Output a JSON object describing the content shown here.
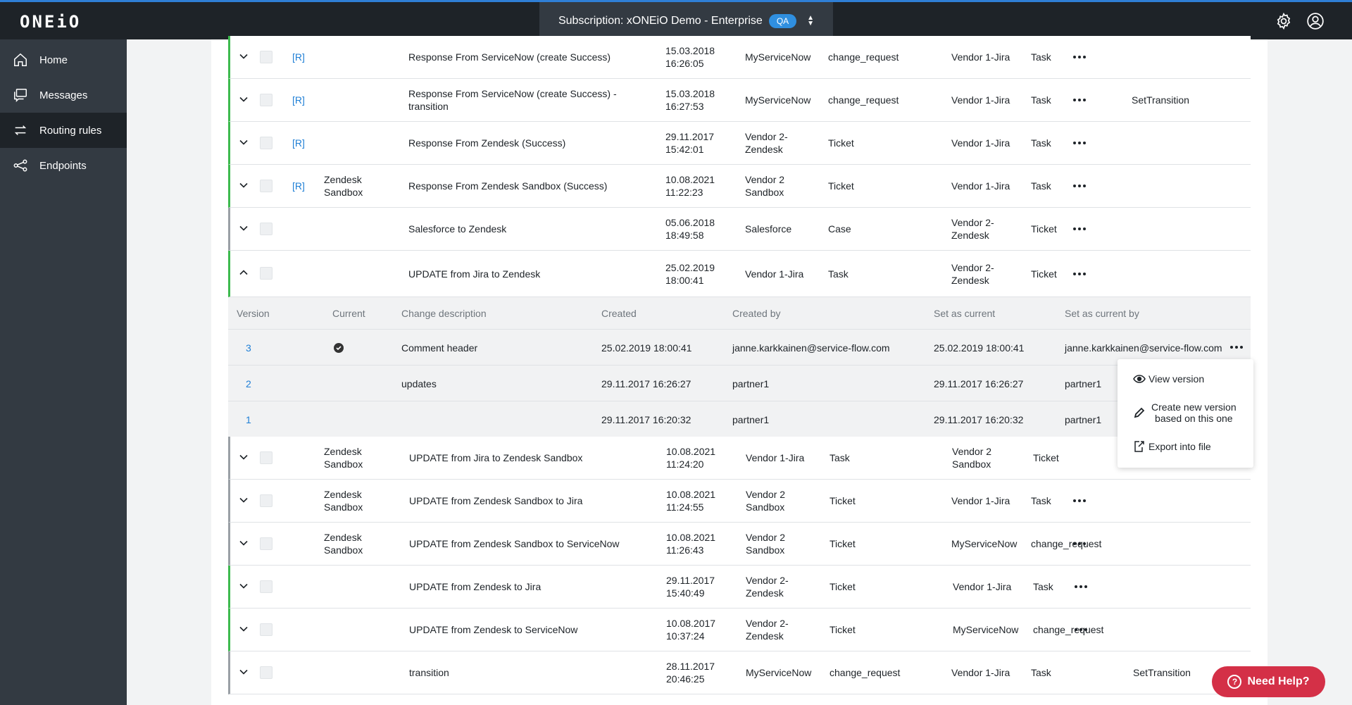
{
  "topbar": {
    "logo": "ONEiO",
    "subscription_label": "Subscription: xONEiO Demo - Enterprise",
    "env_badge": "QA",
    "icons": [
      "settings-gear-icon",
      "user-account-icon"
    ]
  },
  "sidebar": {
    "items": [
      {
        "label": "Home",
        "icon": "home-icon"
      },
      {
        "label": "Messages",
        "icon": "messages-icon"
      },
      {
        "label": "Routing rules",
        "icon": "routing-icon",
        "active": true
      },
      {
        "label": "Endpoints",
        "icon": "endpoints-icon"
      }
    ]
  },
  "rules": [
    {
      "tag": "[R]",
      "group": "",
      "name": "Response From ServiceNow (create Success)",
      "date": "15.03.2018",
      "time": "16:26:05",
      "source": "MyServiceNow",
      "source_type": "change_request",
      "target": "Vendor 1-Jira",
      "target_type": "Task",
      "extra": ""
    },
    {
      "tag": "[R]",
      "group": "",
      "name": "Response From ServiceNow (create Success) -",
      "name2": "transition",
      "date": "15.03.2018",
      "time": "16:27:53",
      "source": "MyServiceNow",
      "source_type": "change_request",
      "target": "Vendor 1-Jira",
      "target_type": "Task",
      "extra": "SetTransition"
    },
    {
      "tag": "[R]",
      "group": "",
      "name": "Response From Zendesk (Success)",
      "date": "29.11.2017",
      "time": "15:42:01",
      "source": "Vendor 2-",
      "source2": "Zendesk",
      "source_type": "Ticket",
      "target": "Vendor 1-Jira",
      "target_type": "Task",
      "extra": ""
    },
    {
      "tag": "[R]",
      "group": "Zendesk",
      "group2": "Sandbox",
      "name": "Response From Zendesk Sandbox (Success)",
      "date": "10.08.2021",
      "time": "11:22:23",
      "source": "Vendor 2",
      "source2": "Sandbox",
      "source_type": "Ticket",
      "target": "Vendor 1-Jira",
      "target_type": "Task",
      "extra": ""
    },
    {
      "tag": "",
      "group": "",
      "name": "Salesforce to Zendesk",
      "date": "05.06.2018",
      "time": "18:49:58",
      "source": "Salesforce",
      "source_type": "Case",
      "target": "Vendor 2-",
      "target2": "Zendesk",
      "target_type": "Ticket",
      "extra": ""
    },
    {
      "tag": "",
      "group": "",
      "name": "UPDATE from Jira to Zendesk",
      "date": "25.02.2019",
      "time": "18:00:41",
      "source": "Vendor 1-Jira",
      "source_type": "Task",
      "target": "Vendor 2-",
      "target2": "Zendesk",
      "target_type": "Ticket",
      "extra": ""
    },
    {
      "tag": "",
      "group": "Zendesk",
      "group2": "Sandbox",
      "name": "UPDATE from Jira to Zendesk Sandbox",
      "date": "10.08.2021",
      "time": "11:24:20",
      "source": "Vendor 1-Jira",
      "source_type": "Task",
      "target": "Vendor 2",
      "target2": "Sandbox",
      "target_type": "Ticket",
      "extra": ""
    },
    {
      "tag": "",
      "group": "Zendesk",
      "group2": "Sandbox",
      "name": "UPDATE from Zendesk Sandbox to Jira",
      "date": "10.08.2021",
      "time": "11:24:55",
      "source": "Vendor 2",
      "source2": "Sandbox",
      "source_type": "Ticket",
      "target": "Vendor 1-Jira",
      "target_type": "Task",
      "extra": ""
    },
    {
      "tag": "",
      "group": "Zendesk",
      "group2": "Sandbox",
      "name": "UPDATE from Zendesk Sandbox to ServiceNow",
      "date": "10.08.2021",
      "time": "11:26:43",
      "source": "Vendor 2",
      "source2": "Sandbox",
      "source_type": "Ticket",
      "target": "MyServiceNow",
      "target_type": "change_request",
      "extra": ""
    },
    {
      "tag": "",
      "group": "",
      "name": "UPDATE from Zendesk to Jira",
      "date": "29.11.2017",
      "time": "15:40:49",
      "source": "Vendor 2-",
      "source2": "Zendesk",
      "source_type": "Ticket",
      "target": "Vendor 1-Jira",
      "target_type": "Task",
      "extra": ""
    },
    {
      "tag": "",
      "group": "",
      "name": "UPDATE from Zendesk to ServiceNow",
      "date": "10.08.2017",
      "time": "10:37:24",
      "source": "Vendor 2-",
      "source2": "Zendesk",
      "source_type": "Ticket",
      "target": "MyServiceNow",
      "target_type": "change_request",
      "extra": ""
    },
    {
      "tag": "",
      "group": "",
      "name": "transition",
      "date": "28.11.2017",
      "time": "20:46:25",
      "source": "MyServiceNow",
      "source_type": "change_request",
      "target": "Vendor 1-Jira",
      "target_type": "Task",
      "extra": "SetTransition"
    }
  ],
  "versions": {
    "headers": [
      "Version",
      "Current",
      "Change description",
      "Created",
      "Created by",
      "Set as current",
      "Set as current by"
    ],
    "rows": [
      {
        "version": "3",
        "current": true,
        "description": "Comment header",
        "created": "25.02.2019 18:00:41",
        "created_by": "janne.karkkainen@service-flow.com",
        "set_current": "25.02.2019 18:00:41",
        "set_current_by": "janne.karkkainen@service-flow.com"
      },
      {
        "version": "2",
        "current": false,
        "description": "updates",
        "created": "29.11.2017 16:26:27",
        "created_by": "partner1",
        "set_current": "29.11.2017 16:26:27",
        "set_current_by": "partner1"
      },
      {
        "version": "1",
        "current": false,
        "description": "",
        "created": "29.11.2017 16:20:32",
        "created_by": "partner1",
        "set_current": "29.11.2017 16:20:32",
        "set_current_by": "partner1"
      }
    ]
  },
  "context_menu": {
    "view": "View version",
    "create_line1": "Create new version",
    "create_line2": "based on this one",
    "export": "Export into file"
  },
  "help_button": "Need Help?"
}
